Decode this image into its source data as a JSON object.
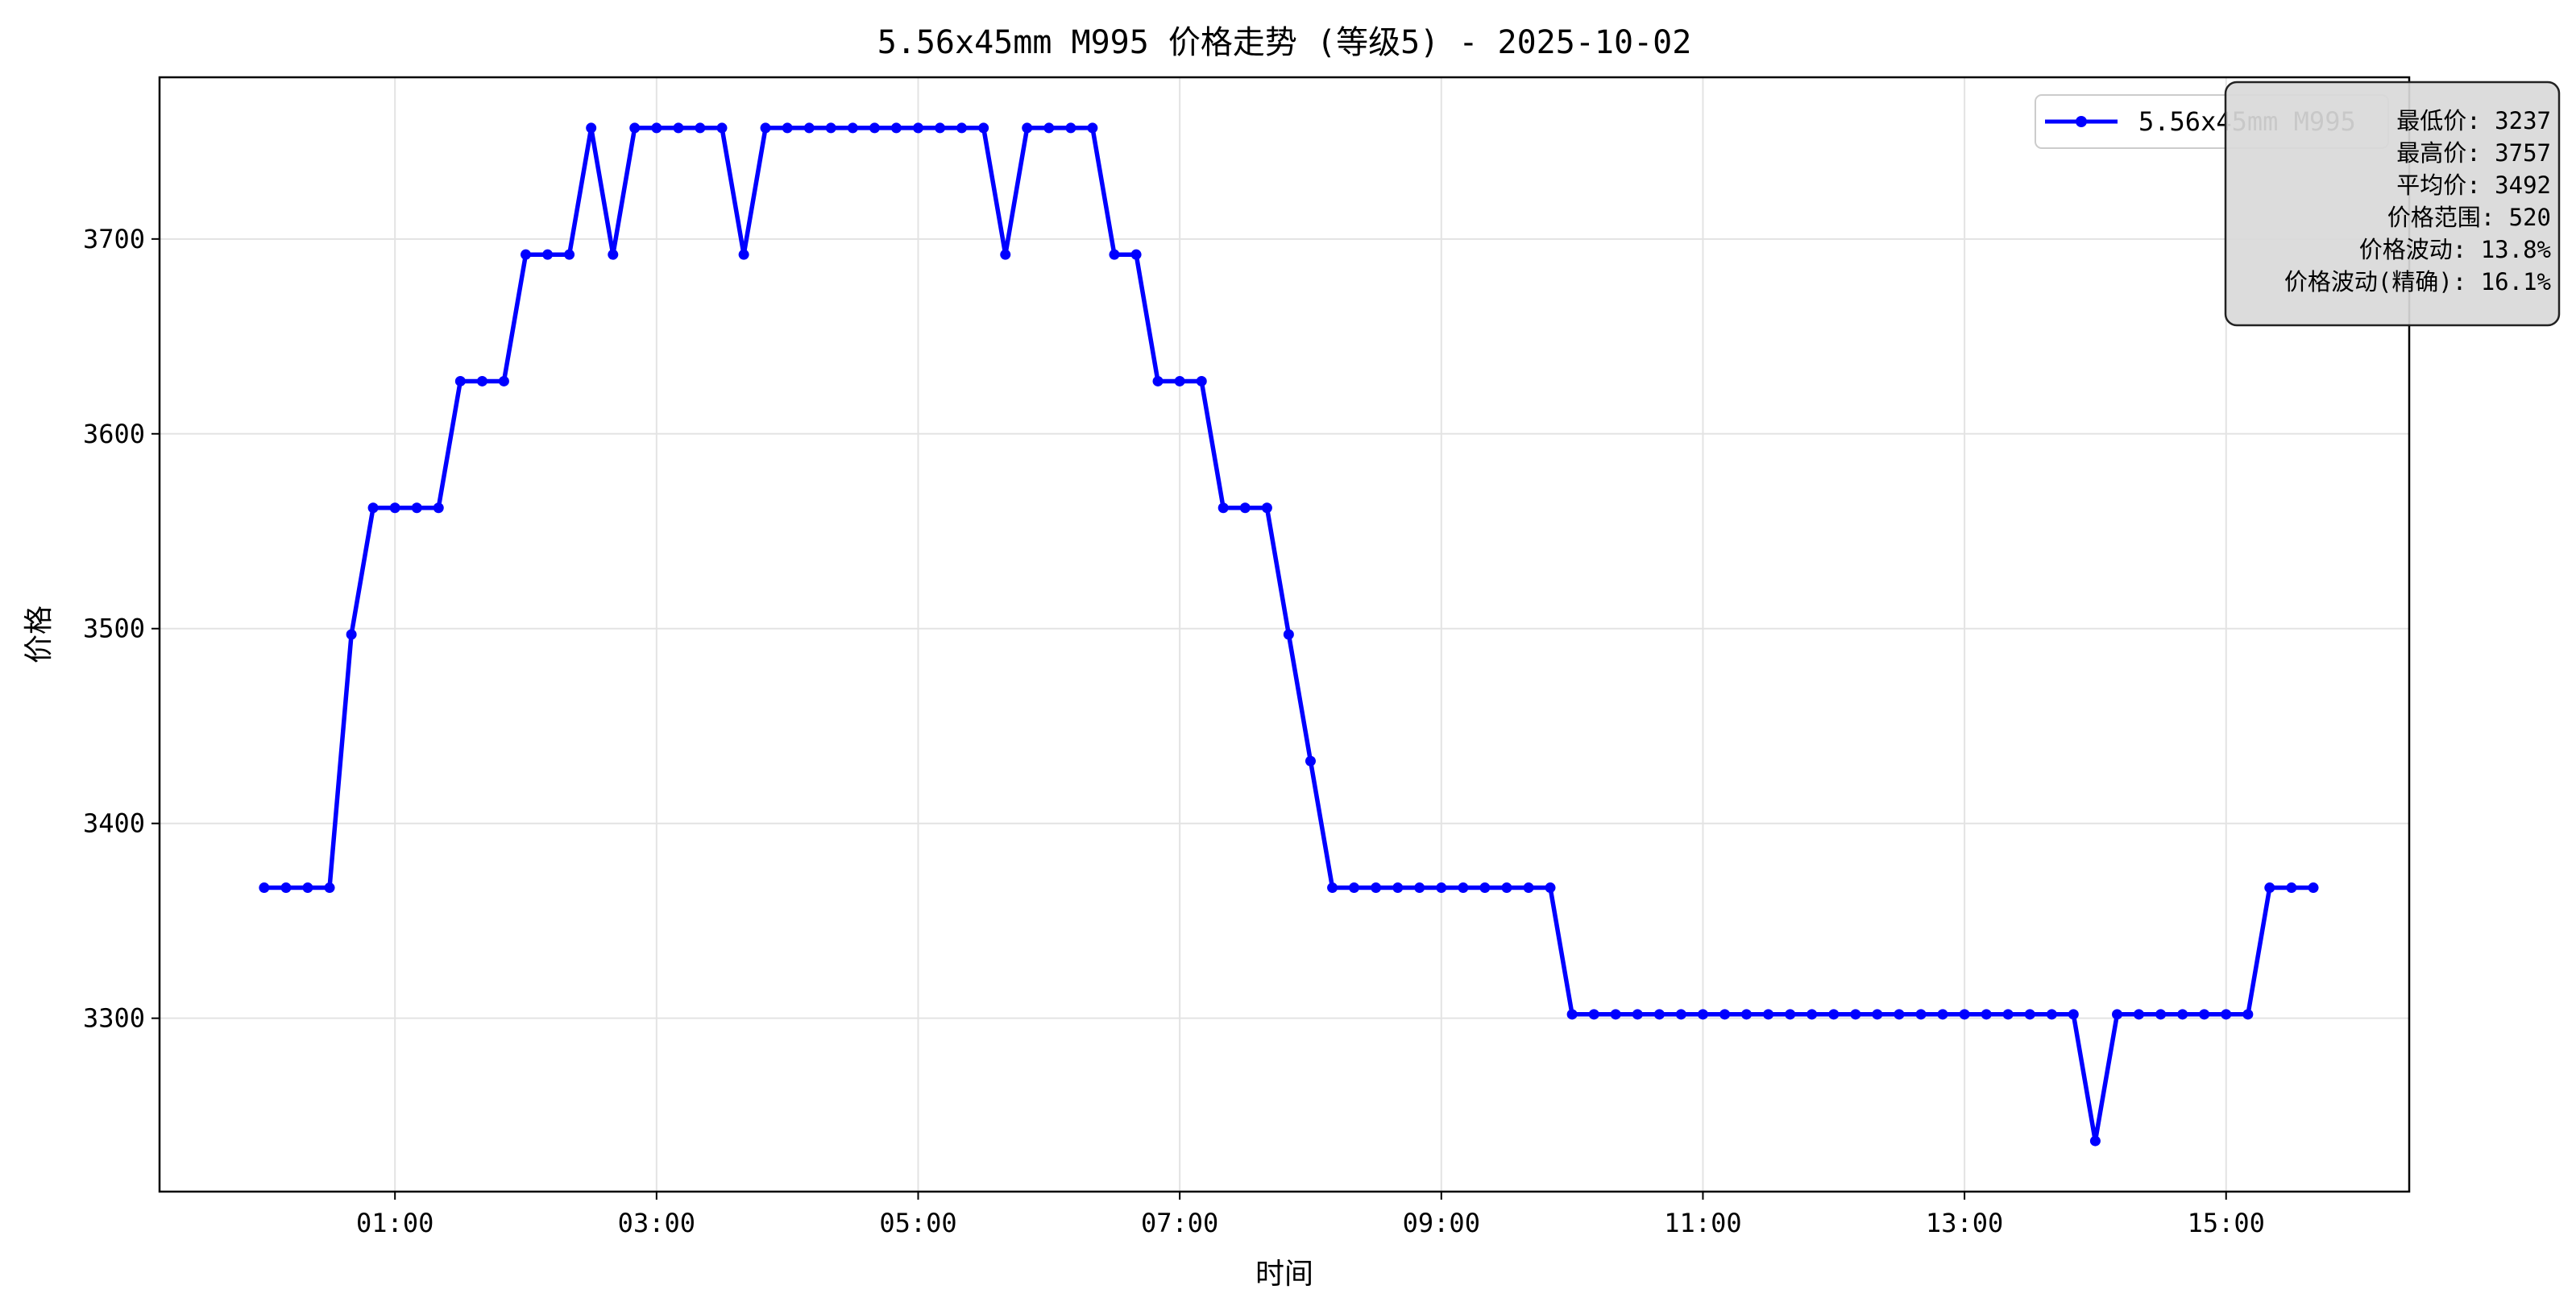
{
  "chart_data": {
    "type": "line",
    "title": "5.56x45mm M995 价格走势 (等级5) - 2025-10-02",
    "xlabel": "时间",
    "ylabel": "价格",
    "x_unit": "hours",
    "xlim": [
      -0.8,
      16.4
    ],
    "ylim": [
      3211,
      3783
    ],
    "xticks": [
      {
        "value": 1,
        "label": "01:00"
      },
      {
        "value": 3,
        "label": "03:00"
      },
      {
        "value": 5,
        "label": "05:00"
      },
      {
        "value": 7,
        "label": "07:00"
      },
      {
        "value": 9,
        "label": "09:00"
      },
      {
        "value": 11,
        "label": "11:00"
      },
      {
        "value": 13,
        "label": "13:00"
      },
      {
        "value": 15,
        "label": "15:00"
      }
    ],
    "yticks": [
      3300,
      3400,
      3500,
      3600,
      3700
    ],
    "grid": true,
    "legend_position": "top-right",
    "series": [
      {
        "name": "5.56x45mm M995",
        "color": "#0000ff",
        "marker": "circle",
        "x": [
          0.0,
          0.167,
          0.333,
          0.5,
          0.667,
          0.833,
          1.0,
          1.167,
          1.333,
          1.5,
          1.667,
          1.833,
          2.0,
          2.167,
          2.333,
          2.5,
          2.667,
          2.833,
          3.0,
          3.167,
          3.333,
          3.5,
          3.667,
          3.833,
          4.0,
          4.167,
          4.333,
          4.5,
          4.667,
          4.833,
          5.0,
          5.167,
          5.333,
          5.5,
          5.667,
          5.833,
          6.0,
          6.167,
          6.333,
          6.5,
          6.667,
          6.833,
          7.0,
          7.167,
          7.333,
          7.5,
          7.667,
          7.833,
          8.0,
          8.167,
          8.333,
          8.5,
          8.667,
          8.833,
          9.0,
          9.167,
          9.333,
          9.5,
          9.667,
          9.833,
          10.0,
          10.167,
          10.333,
          10.5,
          10.667,
          10.833,
          11.0,
          11.167,
          11.333,
          11.5,
          11.667,
          11.833,
          12.0,
          12.167,
          12.333,
          12.5,
          12.667,
          12.833,
          13.0,
          13.167,
          13.333,
          13.5,
          13.667,
          13.833,
          14.0,
          14.167,
          14.333,
          14.5,
          14.667,
          14.833,
          15.0,
          15.167,
          15.333,
          15.5,
          15.667
        ],
        "values": [
          3367,
          3367,
          3367,
          3367,
          3497,
          3562,
          3562,
          3562,
          3562,
          3627,
          3627,
          3627,
          3692,
          3692,
          3692,
          3757,
          3692,
          3757,
          3757,
          3757,
          3757,
          3757,
          3692,
          3757,
          3757,
          3757,
          3757,
          3757,
          3757,
          3757,
          3757,
          3757,
          3757,
          3757,
          3692,
          3757,
          3757,
          3757,
          3757,
          3692,
          3692,
          3627,
          3627,
          3627,
          3562,
          3562,
          3562,
          3497,
          3432,
          3367,
          3367,
          3367,
          3367,
          3367,
          3367,
          3367,
          3367,
          3367,
          3367,
          3367,
          3302,
          3302,
          3302,
          3302,
          3302,
          3302,
          3302,
          3302,
          3302,
          3302,
          3302,
          3302,
          3302,
          3302,
          3302,
          3302,
          3302,
          3302,
          3302,
          3302,
          3302,
          3302,
          3302,
          3302,
          3237,
          3302,
          3302,
          3302,
          3302,
          3302,
          3302,
          3302,
          3367,
          3367,
          3367
        ]
      }
    ],
    "stats_box": [
      "最低价: 3237",
      "最高价: 3757",
      "平均价: 3492",
      "价格范围: 520",
      "价格波动: 13.8%",
      "价格波动(精确): 16.1%"
    ]
  }
}
